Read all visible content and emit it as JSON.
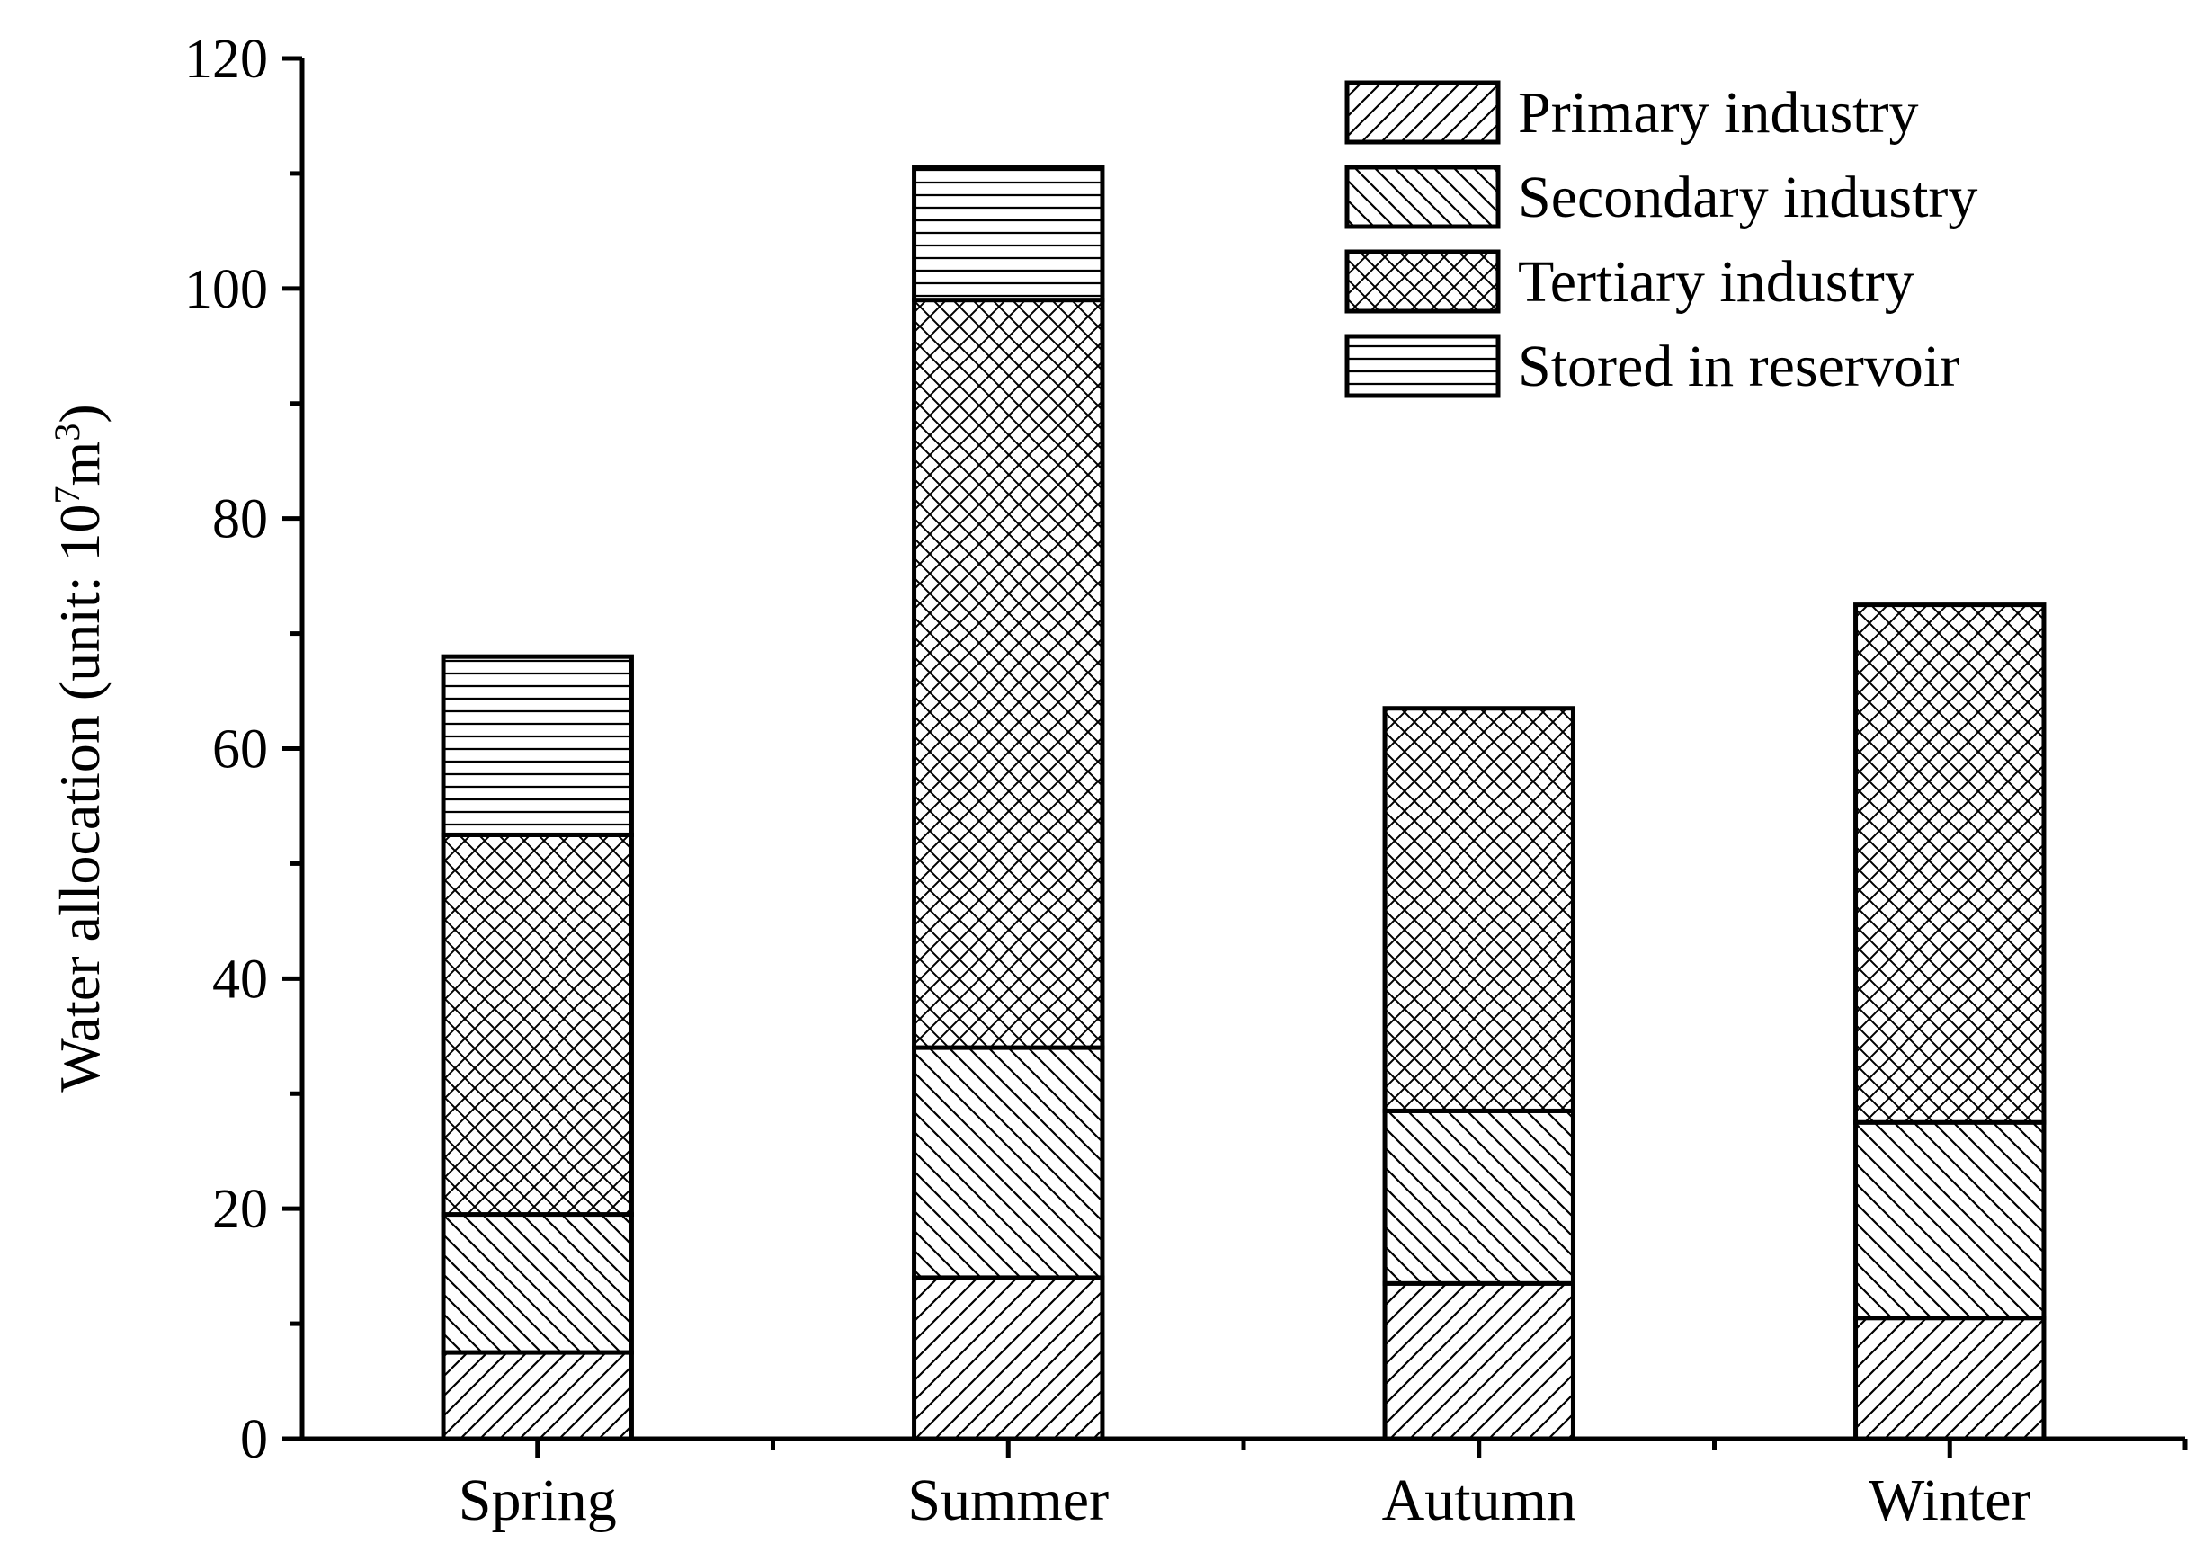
{
  "chart_data": {
    "type": "bar",
    "stacked": true,
    "categories": [
      "Spring",
      "Summer",
      "Autumn",
      "Winter"
    ],
    "series": [
      {
        "name": "Primary industry",
        "pattern": "diagonal-forward",
        "values": [
          7.5,
          14.0,
          13.5,
          10.5
        ]
      },
      {
        "name": "Secondary industry",
        "pattern": "diagonal-back",
        "values": [
          12.0,
          20.0,
          15.0,
          17.0
        ]
      },
      {
        "name": "Tertiary industry",
        "pattern": "crosshatch",
        "values": [
          33.0,
          65.0,
          35.0,
          45.0
        ]
      },
      {
        "name": "Stored in reservoir",
        "pattern": "horizontal",
        "values": [
          15.5,
          11.5,
          0,
          0
        ]
      }
    ],
    "ylabel_main": "Water allocation (unit:  10",
    "ylabel_exp1": "7",
    "ylabel_mid": "m",
    "ylabel_exp2": "3",
    "ylabel_end": ")",
    "xlabel": "",
    "title": "",
    "ylim": [
      0,
      120
    ],
    "yticks": [
      0,
      20,
      40,
      60,
      80,
      100,
      120
    ],
    "yticks_minor_step": 10,
    "legend_position": "top-right",
    "grid": false,
    "colors": {
      "stroke": "#000000",
      "background": "#ffffff"
    }
  }
}
